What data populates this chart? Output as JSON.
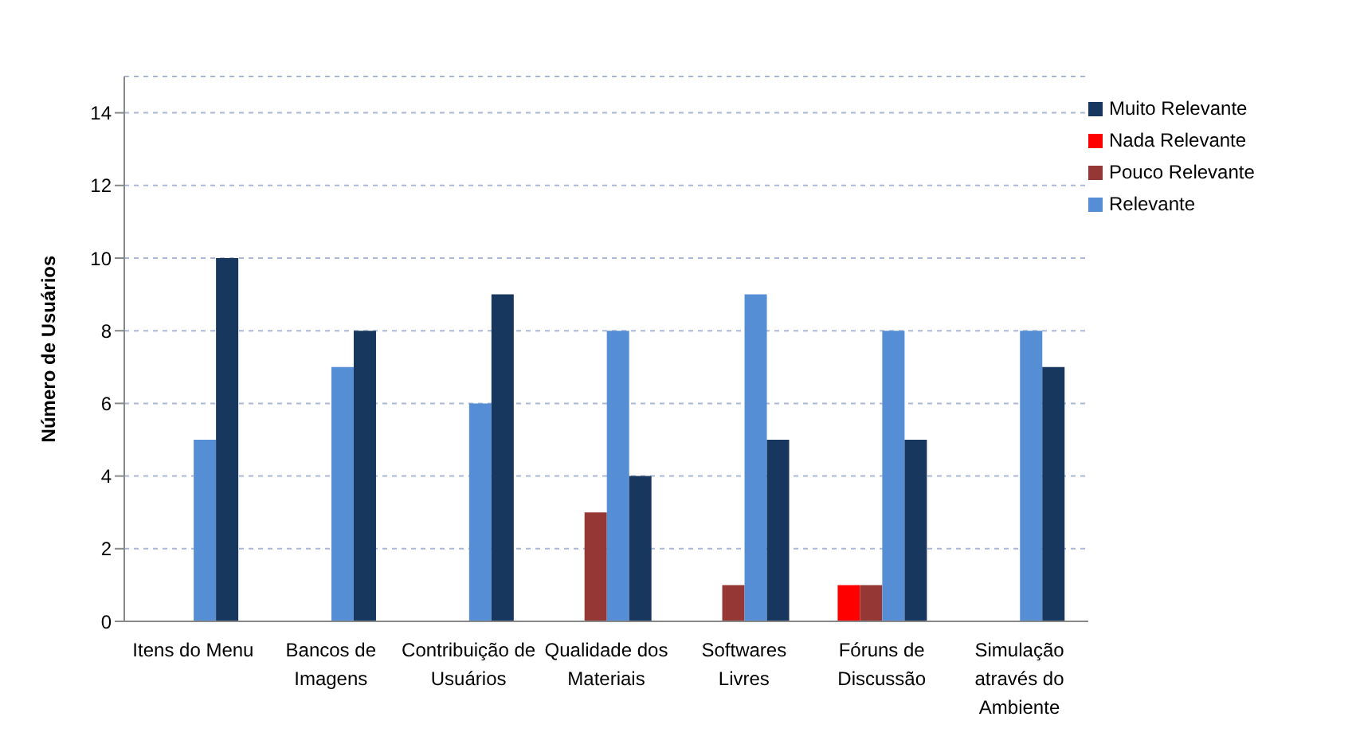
{
  "chart_data": {
    "type": "bar",
    "ylabel": "Número de Usuários",
    "categories": [
      "Itens do Menu",
      "Bancos de Imagens",
      "Contribuição de Usuários",
      "Qualidade dos Materiais",
      "Softwares Livres",
      "Fóruns de Discussão",
      "Simulação através do Ambiente"
    ],
    "series": [
      {
        "name": "Nada Relevante",
        "color": "#ff0000",
        "values": [
          0,
          0,
          0,
          0,
          0,
          1,
          0
        ]
      },
      {
        "name": "Pouco Relevante",
        "color": "#953735",
        "values": [
          0,
          0,
          0,
          3,
          1,
          1,
          0
        ]
      },
      {
        "name": "Relevante",
        "color": "#558ed5",
        "values": [
          5,
          7,
          6,
          8,
          9,
          8,
          8
        ]
      },
      {
        "name": "Muito Relevante",
        "color": "#17375e",
        "values": [
          10,
          8,
          9,
          4,
          5,
          5,
          7
        ]
      }
    ],
    "ylim": [
      0,
      15
    ],
    "yticks": [
      0,
      2,
      4,
      6,
      8,
      10,
      12,
      14
    ],
    "grid": "y",
    "legend": "top right"
  }
}
